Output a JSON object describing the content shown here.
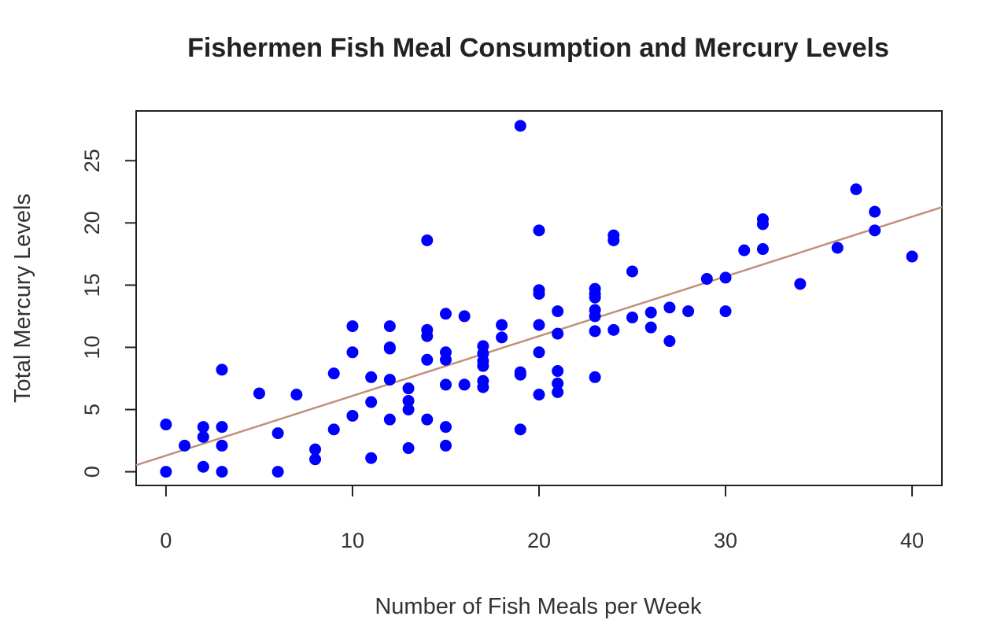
{
  "chart_data": {
    "type": "scatter",
    "title": "Fishermen Fish Meal Consumption and Mercury Levels",
    "xlabel": "Number of Fish Meals per Week",
    "ylabel": "Total Mercury Levels",
    "xlim": [
      -1.6,
      41.6
    ],
    "ylim": [
      -1.1,
      29.0
    ],
    "xticks": [
      0,
      10,
      20,
      30,
      40
    ],
    "yticks": [
      0,
      5,
      10,
      15,
      20,
      25
    ],
    "grid": false,
    "point_color": "#0000ff",
    "line_color": "#c0907a",
    "fit_line": {
      "intercept": 1.3,
      "slope": 0.48
    },
    "points": [
      [
        0,
        3.8
      ],
      [
        0,
        0.0
      ],
      [
        1,
        2.1
      ],
      [
        2,
        3.6
      ],
      [
        2,
        2.8
      ],
      [
        2,
        0.4
      ],
      [
        3,
        8.2
      ],
      [
        3,
        3.6
      ],
      [
        3,
        2.1
      ],
      [
        3,
        0.0
      ],
      [
        5,
        6.3
      ],
      [
        6,
        3.1
      ],
      [
        6,
        0.0
      ],
      [
        7,
        6.2
      ],
      [
        8,
        1.8
      ],
      [
        8,
        1.0
      ],
      [
        9,
        7.9
      ],
      [
        9,
        3.4
      ],
      [
        10,
        11.7
      ],
      [
        10,
        9.6
      ],
      [
        10,
        4.5
      ],
      [
        11,
        7.6
      ],
      [
        11,
        5.6
      ],
      [
        11,
        1.1
      ],
      [
        12,
        11.7
      ],
      [
        12,
        10.0
      ],
      [
        12,
        9.9
      ],
      [
        12,
        7.4
      ],
      [
        12,
        4.2
      ],
      [
        13,
        6.7
      ],
      [
        13,
        5.7
      ],
      [
        13,
        5.0
      ],
      [
        13,
        1.9
      ],
      [
        14,
        18.6
      ],
      [
        14,
        11.4
      ],
      [
        14,
        10.9
      ],
      [
        14,
        9.0
      ],
      [
        14,
        4.2
      ],
      [
        15,
        12.7
      ],
      [
        15,
        9.6
      ],
      [
        15,
        9.0
      ],
      [
        15,
        7.0
      ],
      [
        15,
        3.6
      ],
      [
        15,
        2.1
      ],
      [
        16,
        12.5
      ],
      [
        16,
        7.0
      ],
      [
        17,
        10.1
      ],
      [
        17,
        9.5
      ],
      [
        17,
        8.9
      ],
      [
        17,
        8.5
      ],
      [
        17,
        7.3
      ],
      [
        17,
        6.8
      ],
      [
        18,
        11.8
      ],
      [
        18,
        10.8
      ],
      [
        19,
        27.8
      ],
      [
        19,
        8.0
      ],
      [
        19,
        7.8
      ],
      [
        19,
        3.4
      ],
      [
        20,
        19.4
      ],
      [
        20,
        14.6
      ],
      [
        20,
        14.3
      ],
      [
        20,
        11.8
      ],
      [
        20,
        9.6
      ],
      [
        20,
        6.2
      ],
      [
        21,
        12.9
      ],
      [
        21,
        11.1
      ],
      [
        21,
        8.1
      ],
      [
        21,
        7.1
      ],
      [
        21,
        6.4
      ],
      [
        23,
        14.7
      ],
      [
        23,
        14.3
      ],
      [
        23,
        14.0
      ],
      [
        23,
        13.0
      ],
      [
        23,
        12.5
      ],
      [
        23,
        11.3
      ],
      [
        23,
        7.6
      ],
      [
        24,
        19.0
      ],
      [
        24,
        18.6
      ],
      [
        24,
        11.4
      ],
      [
        25,
        16.1
      ],
      [
        25,
        12.4
      ],
      [
        26,
        12.8
      ],
      [
        26,
        11.6
      ],
      [
        27,
        13.2
      ],
      [
        27,
        10.5
      ],
      [
        28,
        12.9
      ],
      [
        29,
        15.5
      ],
      [
        30,
        15.6
      ],
      [
        30,
        12.9
      ],
      [
        31,
        17.8
      ],
      [
        32,
        20.3
      ],
      [
        32,
        19.9
      ],
      [
        32,
        17.9
      ],
      [
        34,
        15.1
      ],
      [
        36,
        18.0
      ],
      [
        37,
        22.7
      ],
      [
        38,
        20.9
      ],
      [
        38,
        19.4
      ],
      [
        40,
        17.3
      ]
    ]
  }
}
